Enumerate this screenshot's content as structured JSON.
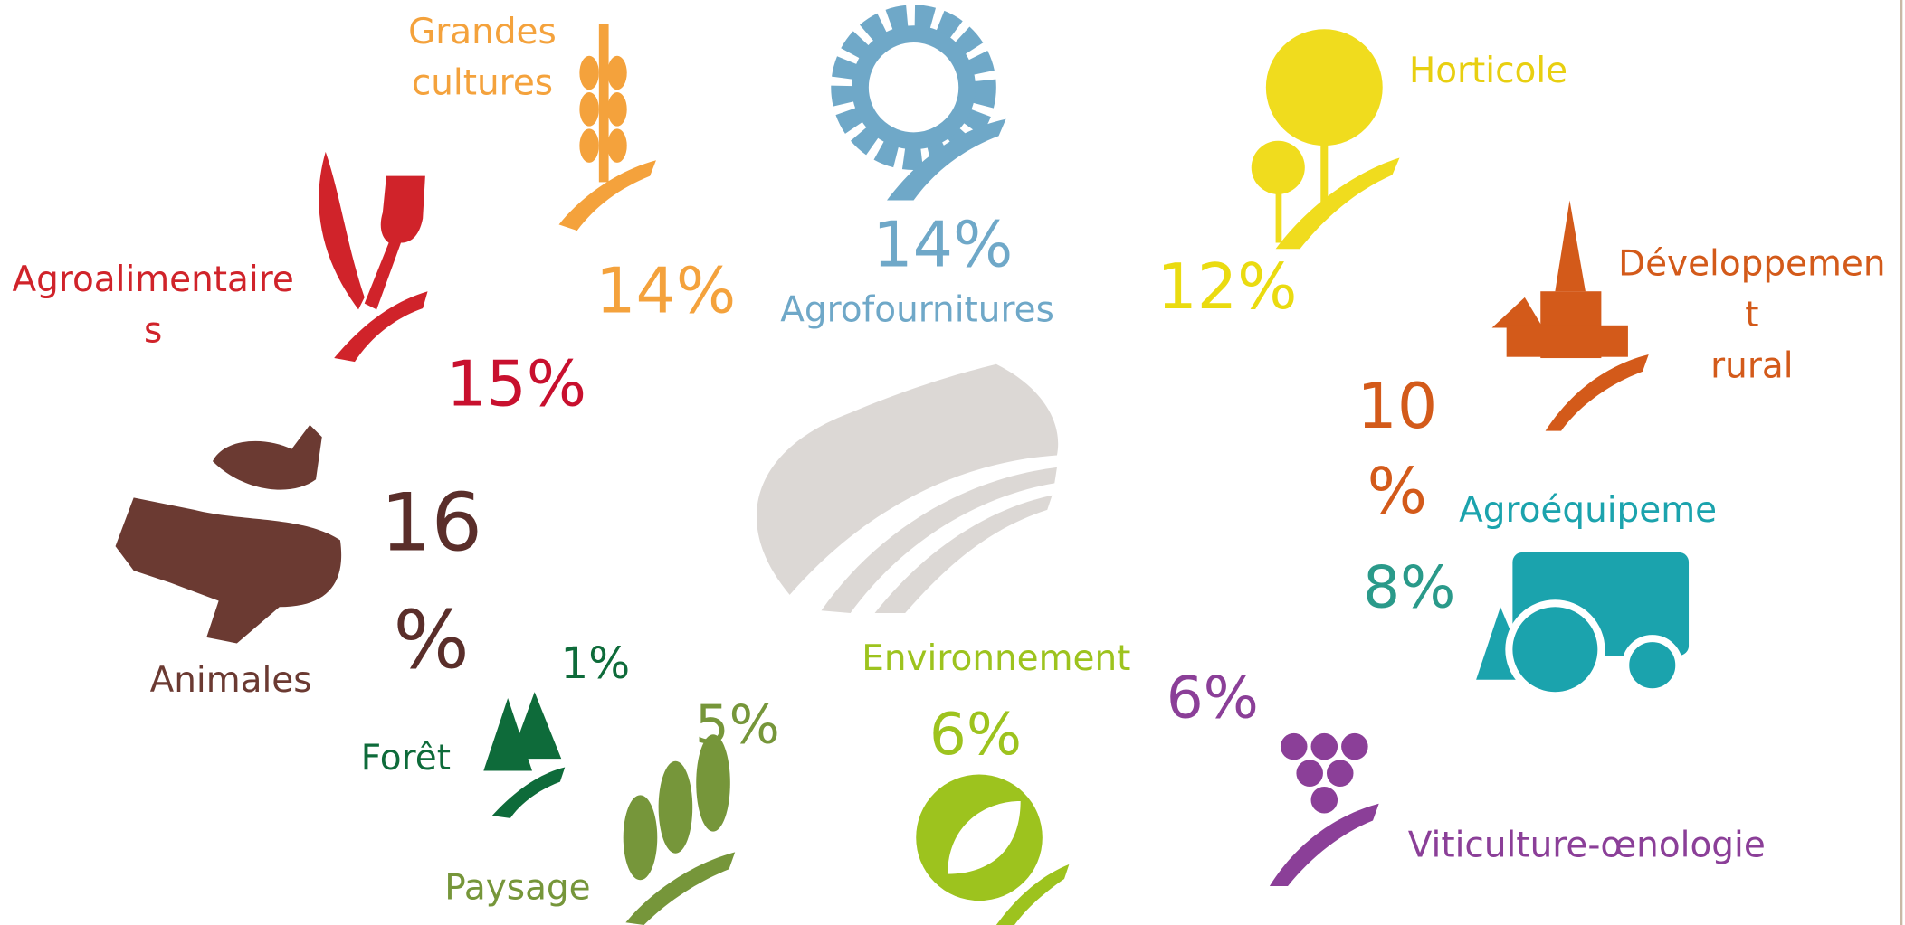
{
  "items": [
    {
      "label": [
        "Grandes",
        "cultures"
      ],
      "percent": [
        "14%"
      ]
    },
    {
      "label": [
        "Agrofournitures"
      ],
      "percent": [
        "14%"
      ]
    },
    {
      "label": [
        "Horticole"
      ],
      "percent": [
        "12%"
      ]
    },
    {
      "label": [
        "Développemen",
        "t",
        "rural"
      ],
      "percent": [
        "10",
        "%"
      ]
    },
    {
      "label": [
        "Agroéquipeme"
      ],
      "percent": [
        "8%"
      ]
    },
    {
      "label": [
        "Viticulture-œnologie"
      ],
      "percent": [
        "6%"
      ]
    },
    {
      "label": [
        "Environnement"
      ],
      "percent": [
        "6%"
      ]
    },
    {
      "label": [
        "Paysage"
      ],
      "percent": [
        "5%"
      ]
    },
    {
      "label": [
        "Forêt"
      ],
      "percent": [
        "1%"
      ]
    },
    {
      "label": [
        "Animales"
      ],
      "percent": [
        "16",
        "%"
      ]
    },
    {
      "label": [
        "Agroalimentaire",
        "s"
      ],
      "percent": [
        "15%"
      ]
    }
  ]
}
